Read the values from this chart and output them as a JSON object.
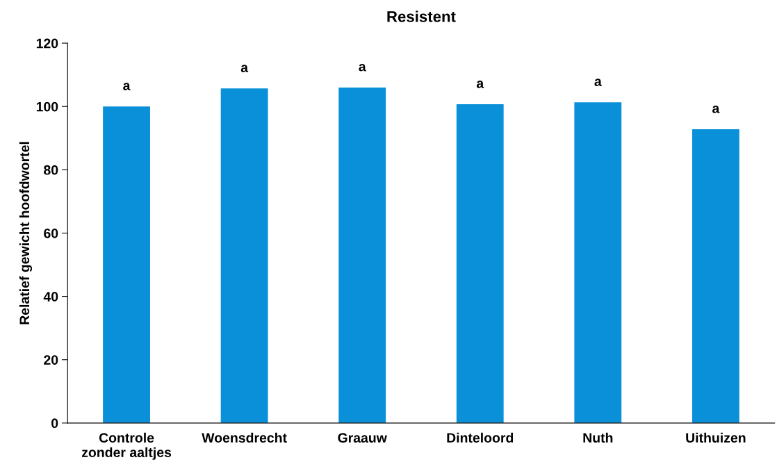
{
  "chart_data": {
    "type": "bar",
    "title": "Resistent",
    "ylabel": "Relatief gewicht hoofdwortel",
    "categories": [
      "Controle\nzonder aaltjes",
      "Woensdrecht",
      "Graauw",
      "Dinteloord",
      "Nuth",
      "Uithuizen"
    ],
    "values": [
      100,
      105.7,
      106,
      100.7,
      101.3,
      92.8
    ],
    "color": "#0a90d8",
    "ylim": [
      0,
      120
    ],
    "yticks": [
      0,
      20,
      40,
      60,
      80,
      100,
      120
    ],
    "grid": false,
    "annotations": [
      {
        "text": "a",
        "x": "Controle\nzonder aaltjes",
        "y": 100
      },
      {
        "text": "a",
        "x": "Woensdrecht",
        "y": 105.7
      },
      {
        "text": "a",
        "x": "Graauw",
        "y": 106
      },
      {
        "text": "a",
        "x": "Dinteloord",
        "y": 100.7
      },
      {
        "text": "a",
        "x": "Nuth",
        "y": 101.3
      },
      {
        "text": "a",
        "x": "Uithuizen",
        "y": 92.8
      }
    ]
  }
}
